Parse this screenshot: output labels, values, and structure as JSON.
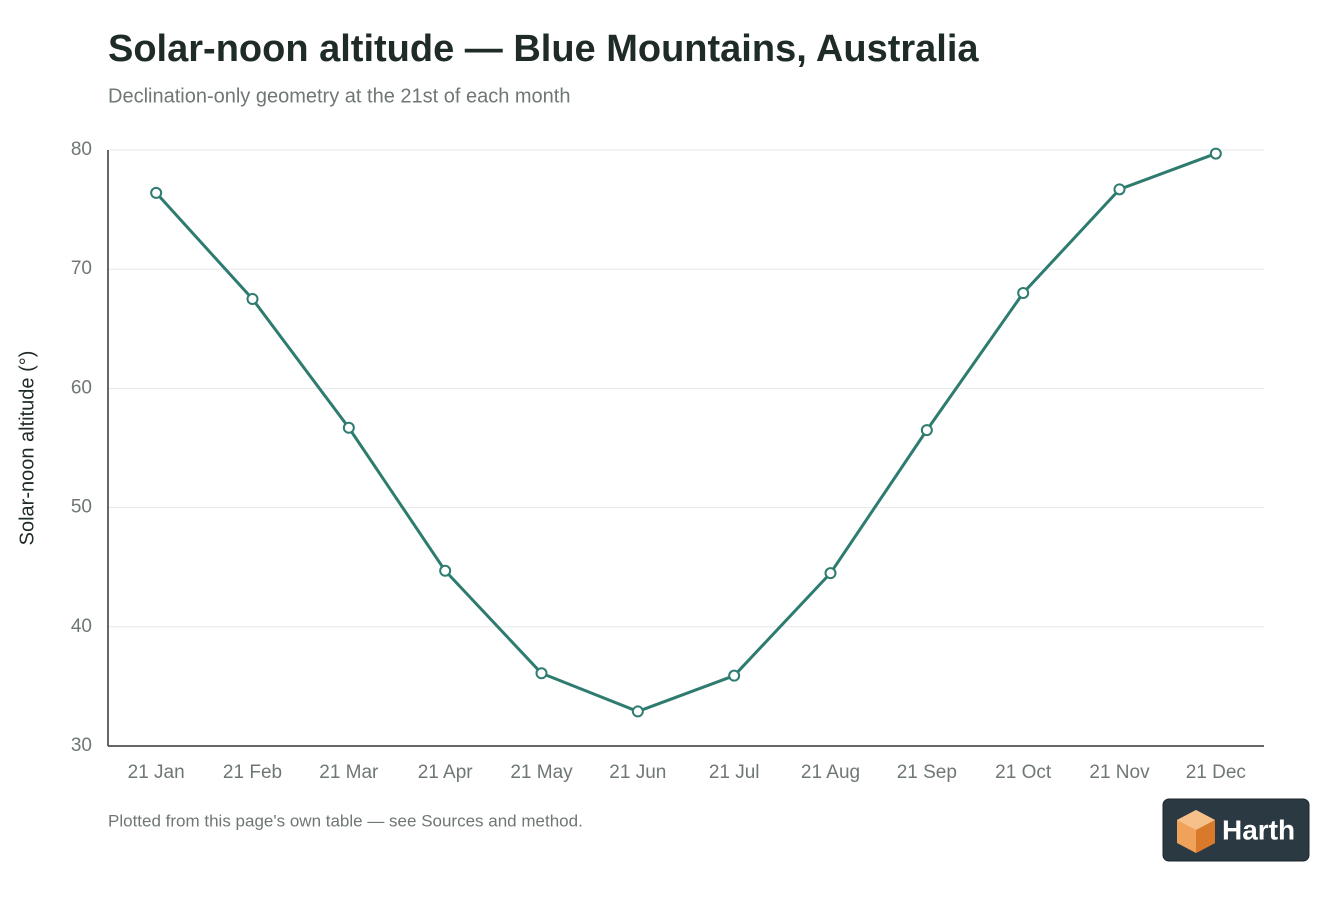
{
  "chart_data": {
    "type": "line",
    "title": "Solar-noon altitude — Blue Mountains, Australia",
    "subtitle": "Declination-only geometry at the 21st of each month",
    "y_label": "Solar-noon altitude (°)",
    "categories": [
      "21 Jan",
      "21 Feb",
      "21 Mar",
      "21 Apr",
      "21 May",
      "21 Jun",
      "21 Jul",
      "21 Aug",
      "21 Sep",
      "21 Oct",
      "21 Nov",
      "21 Dec"
    ],
    "values": [
      76.4,
      67.5,
      56.7,
      44.7,
      36.1,
      32.9,
      35.9,
      44.5,
      56.5,
      68.0,
      76.7,
      79.7
    ],
    "color": "#2e7b6f",
    "ylim": [
      30,
      80
    ],
    "yticks": [
      30,
      40,
      50,
      60,
      70,
      80
    ],
    "grid": true,
    "note": "Plotted from this page's own table — see Sources and method."
  },
  "brand": "Harth"
}
